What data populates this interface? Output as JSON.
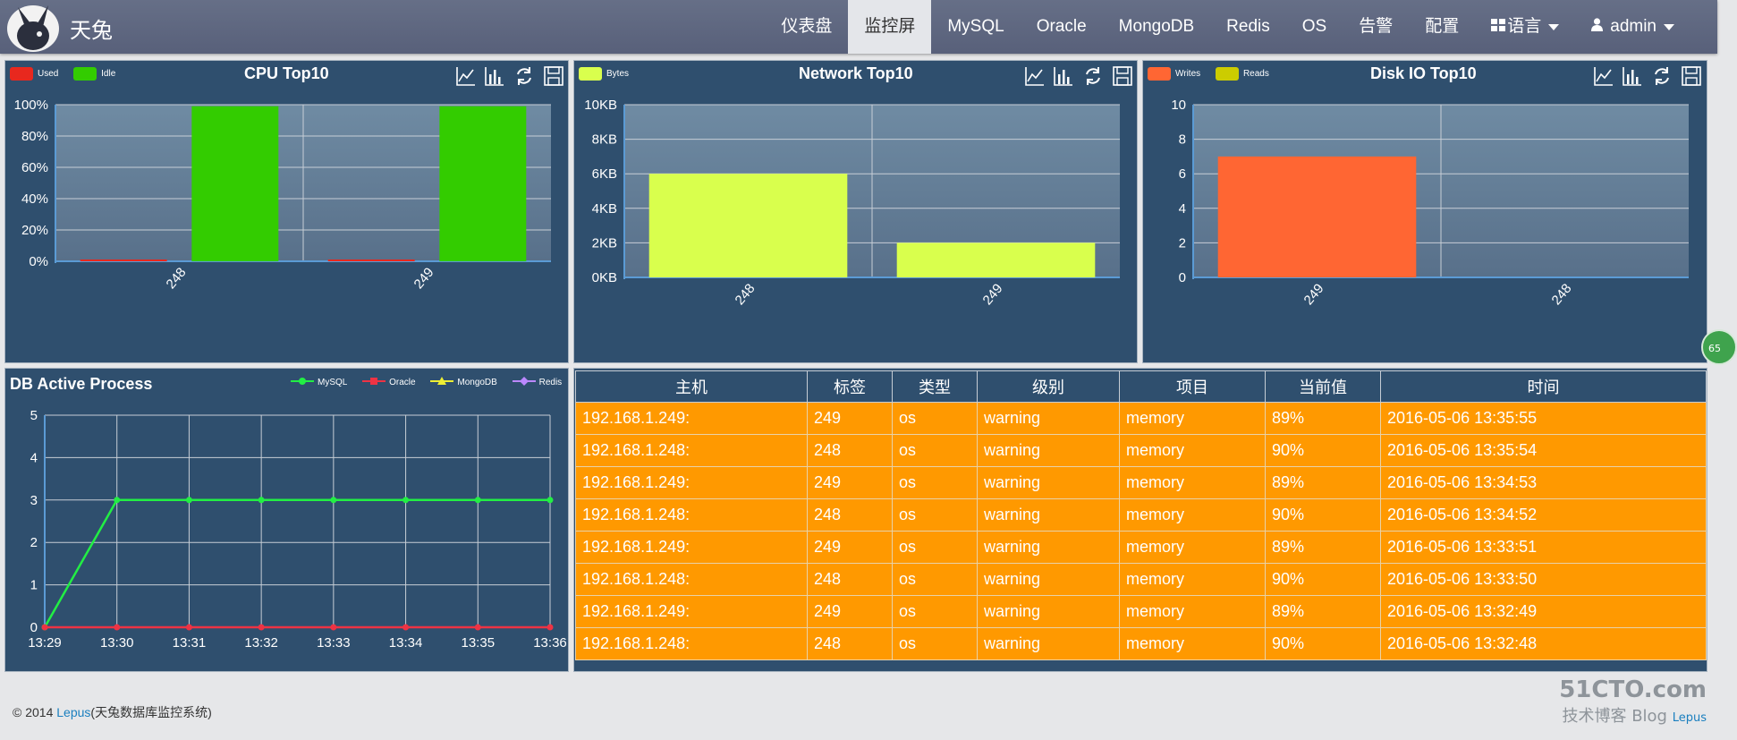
{
  "brand": {
    "name": "天兔"
  },
  "nav": {
    "items": [
      "仪表盘",
      "监控屏",
      "MySQL",
      "Oracle",
      "MongoDB",
      "Redis",
      "OS",
      "告警",
      "配置"
    ],
    "lang_label": "语言",
    "user_label": "admin"
  },
  "cpu": {
    "title": "CPU Top10",
    "legend": [
      {
        "name": "Used",
        "color": "#e8281e"
      },
      {
        "name": "Idle",
        "color": "#33cc00"
      }
    ]
  },
  "network": {
    "title": "Network Top10",
    "legend": [
      {
        "name": "Bytes",
        "color": "#d9ff4d"
      }
    ]
  },
  "disk": {
    "title": "Disk IO Top10",
    "legend": [
      {
        "name": "Writes",
        "color": "#ff6633"
      },
      {
        "name": "Reads",
        "color": "#cccc00"
      }
    ]
  },
  "process": {
    "title": "DB Active Process",
    "legend": [
      {
        "name": "MySQL",
        "color": "#22ee44"
      },
      {
        "name": "Oracle",
        "color": "#ee3344"
      },
      {
        "name": "MongoDB",
        "color": "#eeee33"
      },
      {
        "name": "Redis",
        "color": "#bb88ff"
      }
    ]
  },
  "chart_data": [
    {
      "type": "bar",
      "title": "CPU Top10",
      "categories": [
        "248",
        "249"
      ],
      "series": [
        {
          "name": "Used",
          "values": [
            1,
            1
          ],
          "color": "#e8281e"
        },
        {
          "name": "Idle",
          "values": [
            99,
            99
          ],
          "color": "#33cc00"
        }
      ],
      "yticks": [
        "0%",
        "20%",
        "40%",
        "60%",
        "80%",
        "100%"
      ],
      "ylim": [
        0,
        100
      ]
    },
    {
      "type": "bar",
      "title": "Network Top10",
      "categories": [
        "248",
        "249"
      ],
      "series": [
        {
          "name": "Bytes",
          "values": [
            6,
            2
          ],
          "color": "#d9ff4d"
        }
      ],
      "yticks": [
        "0KB",
        "2KB",
        "4KB",
        "6KB",
        "8KB",
        "10KB"
      ],
      "ylim": [
        0,
        10
      ]
    },
    {
      "type": "bar",
      "title": "Disk IO Top10",
      "categories": [
        "249",
        "248"
      ],
      "series": [
        {
          "name": "Writes",
          "values": [
            7,
            0
          ],
          "color": "#ff6633"
        }
      ],
      "yticks": [
        "0",
        "2",
        "4",
        "6",
        "8",
        "10"
      ],
      "ylim": [
        0,
        10
      ]
    },
    {
      "type": "line",
      "title": "DB Active Process",
      "x": [
        "13:29",
        "13:30",
        "13:31",
        "13:32",
        "13:33",
        "13:34",
        "13:35",
        "13:36"
      ],
      "series": [
        {
          "name": "MySQL",
          "values": [
            0,
            3,
            3,
            3,
            3,
            3,
            3,
            3
          ],
          "color": "#22ee44"
        },
        {
          "name": "Oracle",
          "values": [
            0,
            0,
            0,
            0,
            0,
            0,
            0,
            0
          ],
          "color": "#ee3344"
        }
      ],
      "yticks": [
        "0",
        "1",
        "2",
        "3",
        "4",
        "5"
      ],
      "ylim": [
        0,
        5
      ]
    }
  ],
  "alarms": {
    "headers": [
      "主机",
      "标签",
      "类型",
      "级别",
      "项目",
      "当前值",
      "时间"
    ],
    "rows": [
      [
        "192.168.1.249:",
        "249",
        "os",
        "warning",
        "memory",
        "89%",
        "2016-05-06 13:35:55"
      ],
      [
        "192.168.1.248:",
        "248",
        "os",
        "warning",
        "memory",
        "90%",
        "2016-05-06 13:35:54"
      ],
      [
        "192.168.1.249:",
        "249",
        "os",
        "warning",
        "memory",
        "89%",
        "2016-05-06 13:34:53"
      ],
      [
        "192.168.1.248:",
        "248",
        "os",
        "warning",
        "memory",
        "90%",
        "2016-05-06 13:34:52"
      ],
      [
        "192.168.1.249:",
        "249",
        "os",
        "warning",
        "memory",
        "89%",
        "2016-05-06 13:33:51"
      ],
      [
        "192.168.1.248:",
        "248",
        "os",
        "warning",
        "memory",
        "90%",
        "2016-05-06 13:33:50"
      ],
      [
        "192.168.1.249:",
        "249",
        "os",
        "warning",
        "memory",
        "89%",
        "2016-05-06 13:32:49"
      ],
      [
        "192.168.1.248:",
        "248",
        "os",
        "warning",
        "memory",
        "90%",
        "2016-05-06 13:32:48"
      ]
    ]
  },
  "footer": {
    "prefix": "© 2014 ",
    "link": "Lepus",
    "suffix": "(天兔数据库监控系统)"
  },
  "watermark": {
    "top": "51CTO.com",
    "bottom": "技术博客 Blog",
    "link": "Lepus"
  },
  "bubble": {
    "value": "65"
  }
}
